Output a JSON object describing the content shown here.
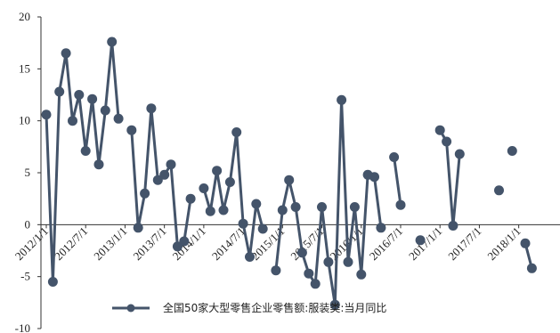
{
  "chart_data": {
    "type": "line",
    "title": "",
    "xlabel": "",
    "ylabel": "",
    "ylim": [
      -10,
      20
    ],
    "y_ticks": [
      "20",
      "15",
      "10",
      "5",
      "0",
      "-5",
      "-10"
    ],
    "x_ticks": [
      "2012/1/1",
      "2012/7/1",
      "2013/1/1",
      "2013/7/1",
      "2014/1/1",
      "2014/7/1",
      "2015/1/1",
      "2015/7/1",
      "2016/1/1",
      "2016/7/1",
      "2017/1/1",
      "2017/7/1",
      "2018/1/1"
    ],
    "legend_position": "bottom-center",
    "grid": false,
    "series": [
      {
        "name": "全国50家大型零售企业零售额:服装类:当月同比",
        "color": "#44546a",
        "points": [
          [
            "2012-01",
            10.6
          ],
          [
            "2012-02",
            -5.5
          ],
          [
            "2012-03",
            12.8
          ],
          [
            "2012-04",
            16.5
          ],
          [
            "2012-05",
            10.0
          ],
          [
            "2012-06",
            12.5
          ],
          [
            "2012-07",
            7.1
          ],
          [
            "2012-08",
            12.1
          ],
          [
            "2012-09",
            5.8
          ],
          [
            "2012-10",
            11.0
          ],
          [
            "2012-11",
            17.6
          ],
          [
            "2012-12",
            10.2
          ],
          [
            "2013-02",
            9.1
          ],
          [
            "2013-03",
            -0.3
          ],
          [
            "2013-04",
            3.0
          ],
          [
            "2013-05",
            11.2
          ],
          [
            "2013-06",
            4.3
          ],
          [
            "2013-07",
            4.8
          ],
          [
            "2013-08",
            5.8
          ],
          [
            "2013-09",
            -2.1
          ],
          [
            "2013-10",
            -1.6
          ],
          [
            "2013-11",
            2.5
          ],
          [
            "2014-01",
            3.5
          ],
          [
            "2014-02",
            1.3
          ],
          [
            "2014-03",
            5.2
          ],
          [
            "2014-04",
            1.4
          ],
          [
            "2014-05",
            4.1
          ],
          [
            "2014-06",
            8.9
          ],
          [
            "2014-07",
            0.1
          ],
          [
            "2014-08",
            -3.1
          ],
          [
            "2014-09",
            2.0
          ],
          [
            "2014-10",
            -0.4
          ],
          [
            "2014-12",
            -4.4
          ],
          [
            "2015-01",
            1.4
          ],
          [
            "2015-02",
            4.3
          ],
          [
            "2015-03",
            1.7
          ],
          [
            "2015-04",
            -2.7
          ],
          [
            "2015-05",
            -4.7
          ],
          [
            "2015-06",
            -5.7
          ],
          [
            "2015-07",
            1.7
          ],
          [
            "2015-08",
            -3.6
          ],
          [
            "2015-09",
            -7.7
          ],
          [
            "2015-10",
            12.0
          ],
          [
            "2015-11",
            -3.6
          ],
          [
            "2015-12",
            1.7
          ],
          [
            "2016-01",
            -4.8
          ],
          [
            "2016-02",
            4.8
          ],
          [
            "2016-03",
            4.6
          ],
          [
            "2016-04",
            -0.3
          ],
          [
            "2016-06",
            6.5
          ],
          [
            "2016-07",
            1.9
          ],
          [
            "2016-10",
            -1.5
          ],
          [
            "2017-01",
            9.1
          ],
          [
            "2017-02",
            8.0
          ],
          [
            "2017-03",
            -0.1
          ],
          [
            "2017-04",
            6.8
          ],
          [
            "2017-10",
            3.3
          ],
          [
            "2017-12",
            7.1
          ],
          [
            "2018-02",
            -1.8
          ],
          [
            "2018-03",
            -4.2
          ]
        ]
      }
    ]
  }
}
